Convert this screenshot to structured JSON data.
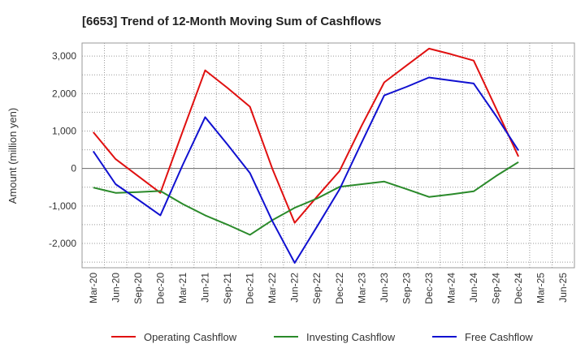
{
  "chart_data": {
    "type": "line",
    "title": "[6653]  Trend of 12-Month Moving Sum of Cashflows",
    "ylabel": "Amount (million yen)",
    "xlabel": "",
    "ylim": [
      -2650,
      3350
    ],
    "yticks": [
      -2000,
      -1000,
      0,
      1000,
      2000,
      3000
    ],
    "ytick_labels": [
      "-2,000",
      "-1,000",
      "0",
      "1,000",
      "2,000",
      "3,000"
    ],
    "categories": [
      "Mar-20",
      "Jun-20",
      "Sep-20",
      "Dec-20",
      "Mar-21",
      "Jun-21",
      "Sep-21",
      "Dec-21",
      "Mar-22",
      "Jun-22",
      "Sep-22",
      "Dec-22",
      "Mar-23",
      "Jun-23",
      "Sep-23",
      "Dec-23",
      "Mar-24",
      "Jun-24",
      "Sep-24",
      "Dec-24",
      "Mar-25",
      "Jun-25"
    ],
    "grid": true,
    "legend_position": "bottom",
    "series": [
      {
        "name": "Operating Cashflow",
        "color": "#e01010",
        "values": [
          970,
          250,
          -200,
          -650,
          1000,
          2620,
          2150,
          1650,
          0,
          -1450,
          -750,
          -70,
          1150,
          2300,
          2750,
          3200,
          3050,
          2880,
          1600,
          320,
          null,
          null
        ]
      },
      {
        "name": "Investing Cashflow",
        "color": "#2a8a2a",
        "values": [
          -510,
          -650,
          -630,
          -600,
          -950,
          -1250,
          -1500,
          -1770,
          -1380,
          -1050,
          -800,
          -490,
          -420,
          -350,
          -550,
          -760,
          -690,
          -610,
          -200,
          170,
          null,
          null
        ]
      },
      {
        "name": "Free Cashflow",
        "color": "#1010d0",
        "values": [
          460,
          -420,
          -830,
          -1250,
          100,
          1370,
          640,
          -120,
          -1400,
          -2520,
          -1550,
          -560,
          700,
          1950,
          2180,
          2430,
          2350,
          2270,
          1400,
          480,
          null,
          null
        ]
      }
    ]
  }
}
